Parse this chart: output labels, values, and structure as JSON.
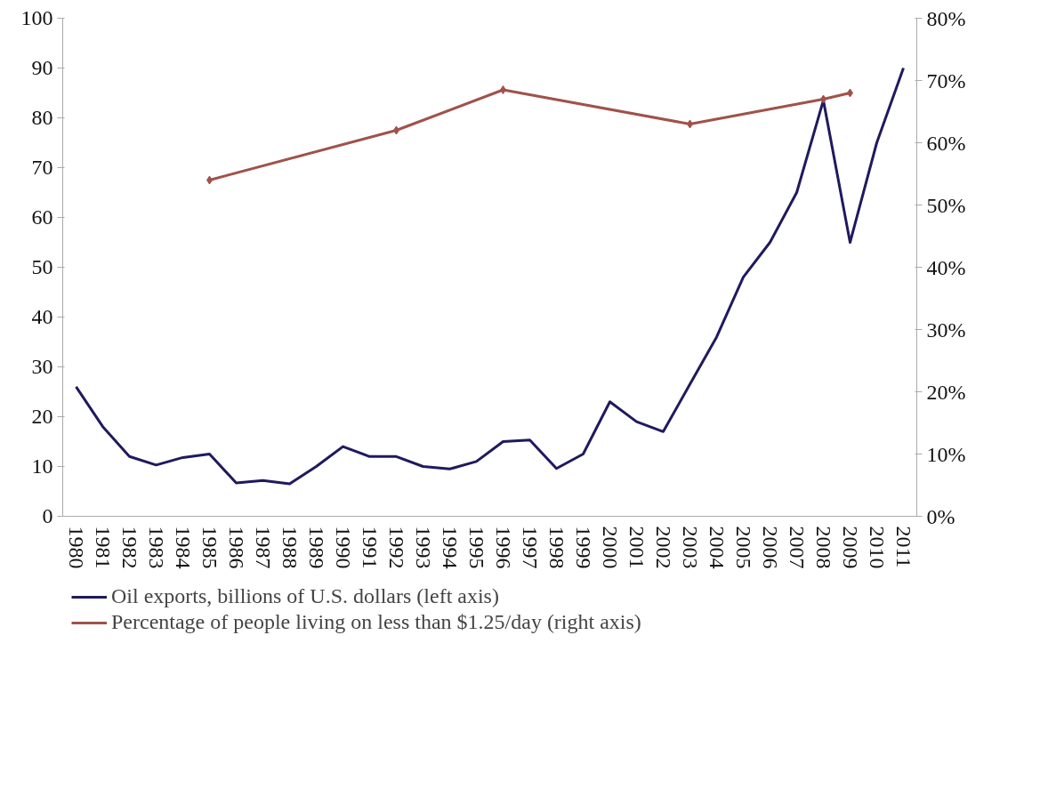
{
  "chart_data": {
    "type": "line",
    "categories": [
      "1980",
      "1981",
      "1982",
      "1983",
      "1984",
      "1985",
      "1986",
      "1987",
      "1988",
      "1989",
      "1990",
      "1991",
      "1992",
      "1993",
      "1994",
      "1995",
      "1996",
      "1997",
      "1998",
      "1999",
      "2000",
      "2001",
      "2002",
      "2003",
      "2004",
      "2005",
      "2006",
      "2007",
      "2008",
      "2009",
      "2010",
      "2011"
    ],
    "series": [
      {
        "name": "Oil exports, billions of U.S. dollars (left axis)",
        "color": "#1f1a5e",
        "values": [
          26,
          18,
          12,
          10.3,
          11.8,
          12.5,
          6.7,
          7.2,
          6.5,
          10,
          14,
          12,
          12,
          10,
          9.5,
          11,
          15,
          15.3,
          9.6,
          12.5,
          23,
          19,
          17,
          26.5,
          36,
          48,
          55,
          65,
          83.5,
          55,
          75,
          90
        ]
      },
      {
        "name": "Percentage of people living on less than $1.25/day (right axis)",
        "color": "#a0524a",
        "axis": "y2",
        "marker": "diamond",
        "values": [
          null,
          null,
          null,
          null,
          null,
          54,
          null,
          null,
          null,
          null,
          null,
          null,
          62,
          null,
          null,
          null,
          68.5,
          null,
          null,
          null,
          null,
          null,
          null,
          63,
          null,
          null,
          null,
          null,
          67,
          68,
          null,
          null
        ]
      }
    ],
    "ylim": [
      0,
      100
    ],
    "yticks": [
      0,
      10,
      20,
      30,
      40,
      50,
      60,
      70,
      80,
      90,
      100
    ],
    "y2lim": [
      0,
      80
    ],
    "y2ticks": [
      {
        "value": 0,
        "label": "0%"
      },
      {
        "value": 10,
        "label": "10%"
      },
      {
        "value": 20,
        "label": "20%"
      },
      {
        "value": 30,
        "label": "30%"
      },
      {
        "value": 40,
        "label": "40%"
      },
      {
        "value": 50,
        "label": "50%"
      },
      {
        "value": 60,
        "label": "60%"
      },
      {
        "value": 70,
        "label": "70%"
      },
      {
        "value": 80,
        "label": "80%"
      }
    ],
    "grid": false,
    "legend": "bottom",
    "line_style": "solid"
  }
}
